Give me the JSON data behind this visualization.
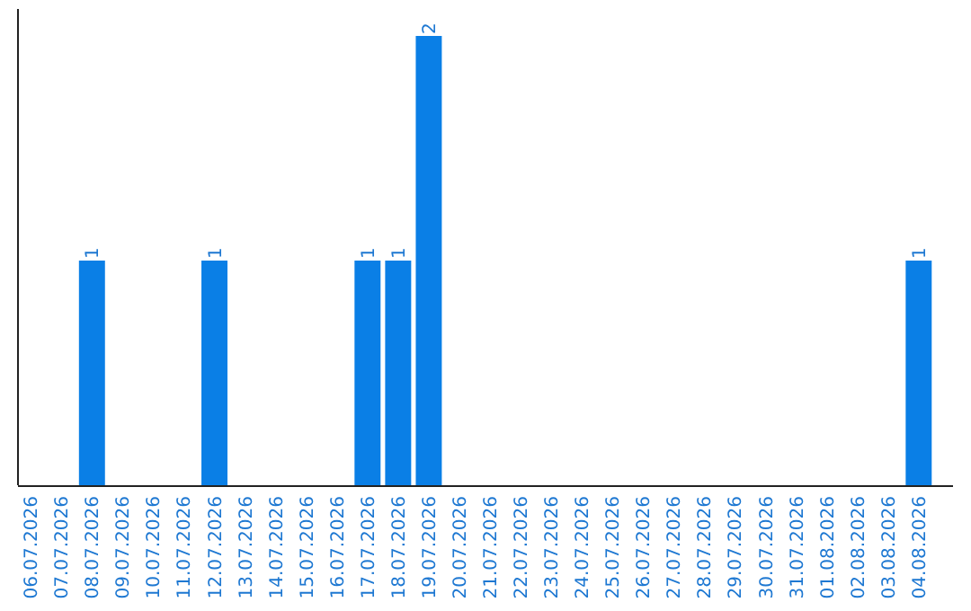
{
  "chart_data": {
    "type": "bar",
    "categories": [
      "06.07.2026",
      "07.07.2026",
      "08.07.2026",
      "09.07.2026",
      "10.07.2026",
      "11.07.2026",
      "12.07.2026",
      "13.07.2026",
      "14.07.2026",
      "15.07.2026",
      "16.07.2026",
      "17.07.2026",
      "18.07.2026",
      "19.07.2026",
      "20.07.2026",
      "21.07.2026",
      "22.07.2026",
      "23.07.2026",
      "24.07.2026",
      "25.07.2026",
      "26.07.2026",
      "27.07.2026",
      "28.07.2026",
      "29.07.2026",
      "30.07.2026",
      "31.07.2026",
      "01.08.2026",
      "02.08.2026",
      "03.08.2026",
      "04.08.2026"
    ],
    "values": [
      0,
      0,
      1,
      0,
      0,
      0,
      1,
      0,
      0,
      0,
      0,
      1,
      1,
      2,
      0,
      0,
      0,
      0,
      0,
      0,
      0,
      0,
      0,
      0,
      0,
      0,
      0,
      0,
      0,
      1
    ],
    "value_labels": [
      null,
      null,
      "1",
      null,
      null,
      null,
      "1",
      null,
      null,
      null,
      null,
      "1",
      "1",
      "2",
      null,
      null,
      null,
      null,
      null,
      null,
      null,
      null,
      null,
      null,
      null,
      null,
      null,
      null,
      null,
      "1"
    ],
    "color": "#0a7fe6",
    "tick_labels": "x"
  }
}
